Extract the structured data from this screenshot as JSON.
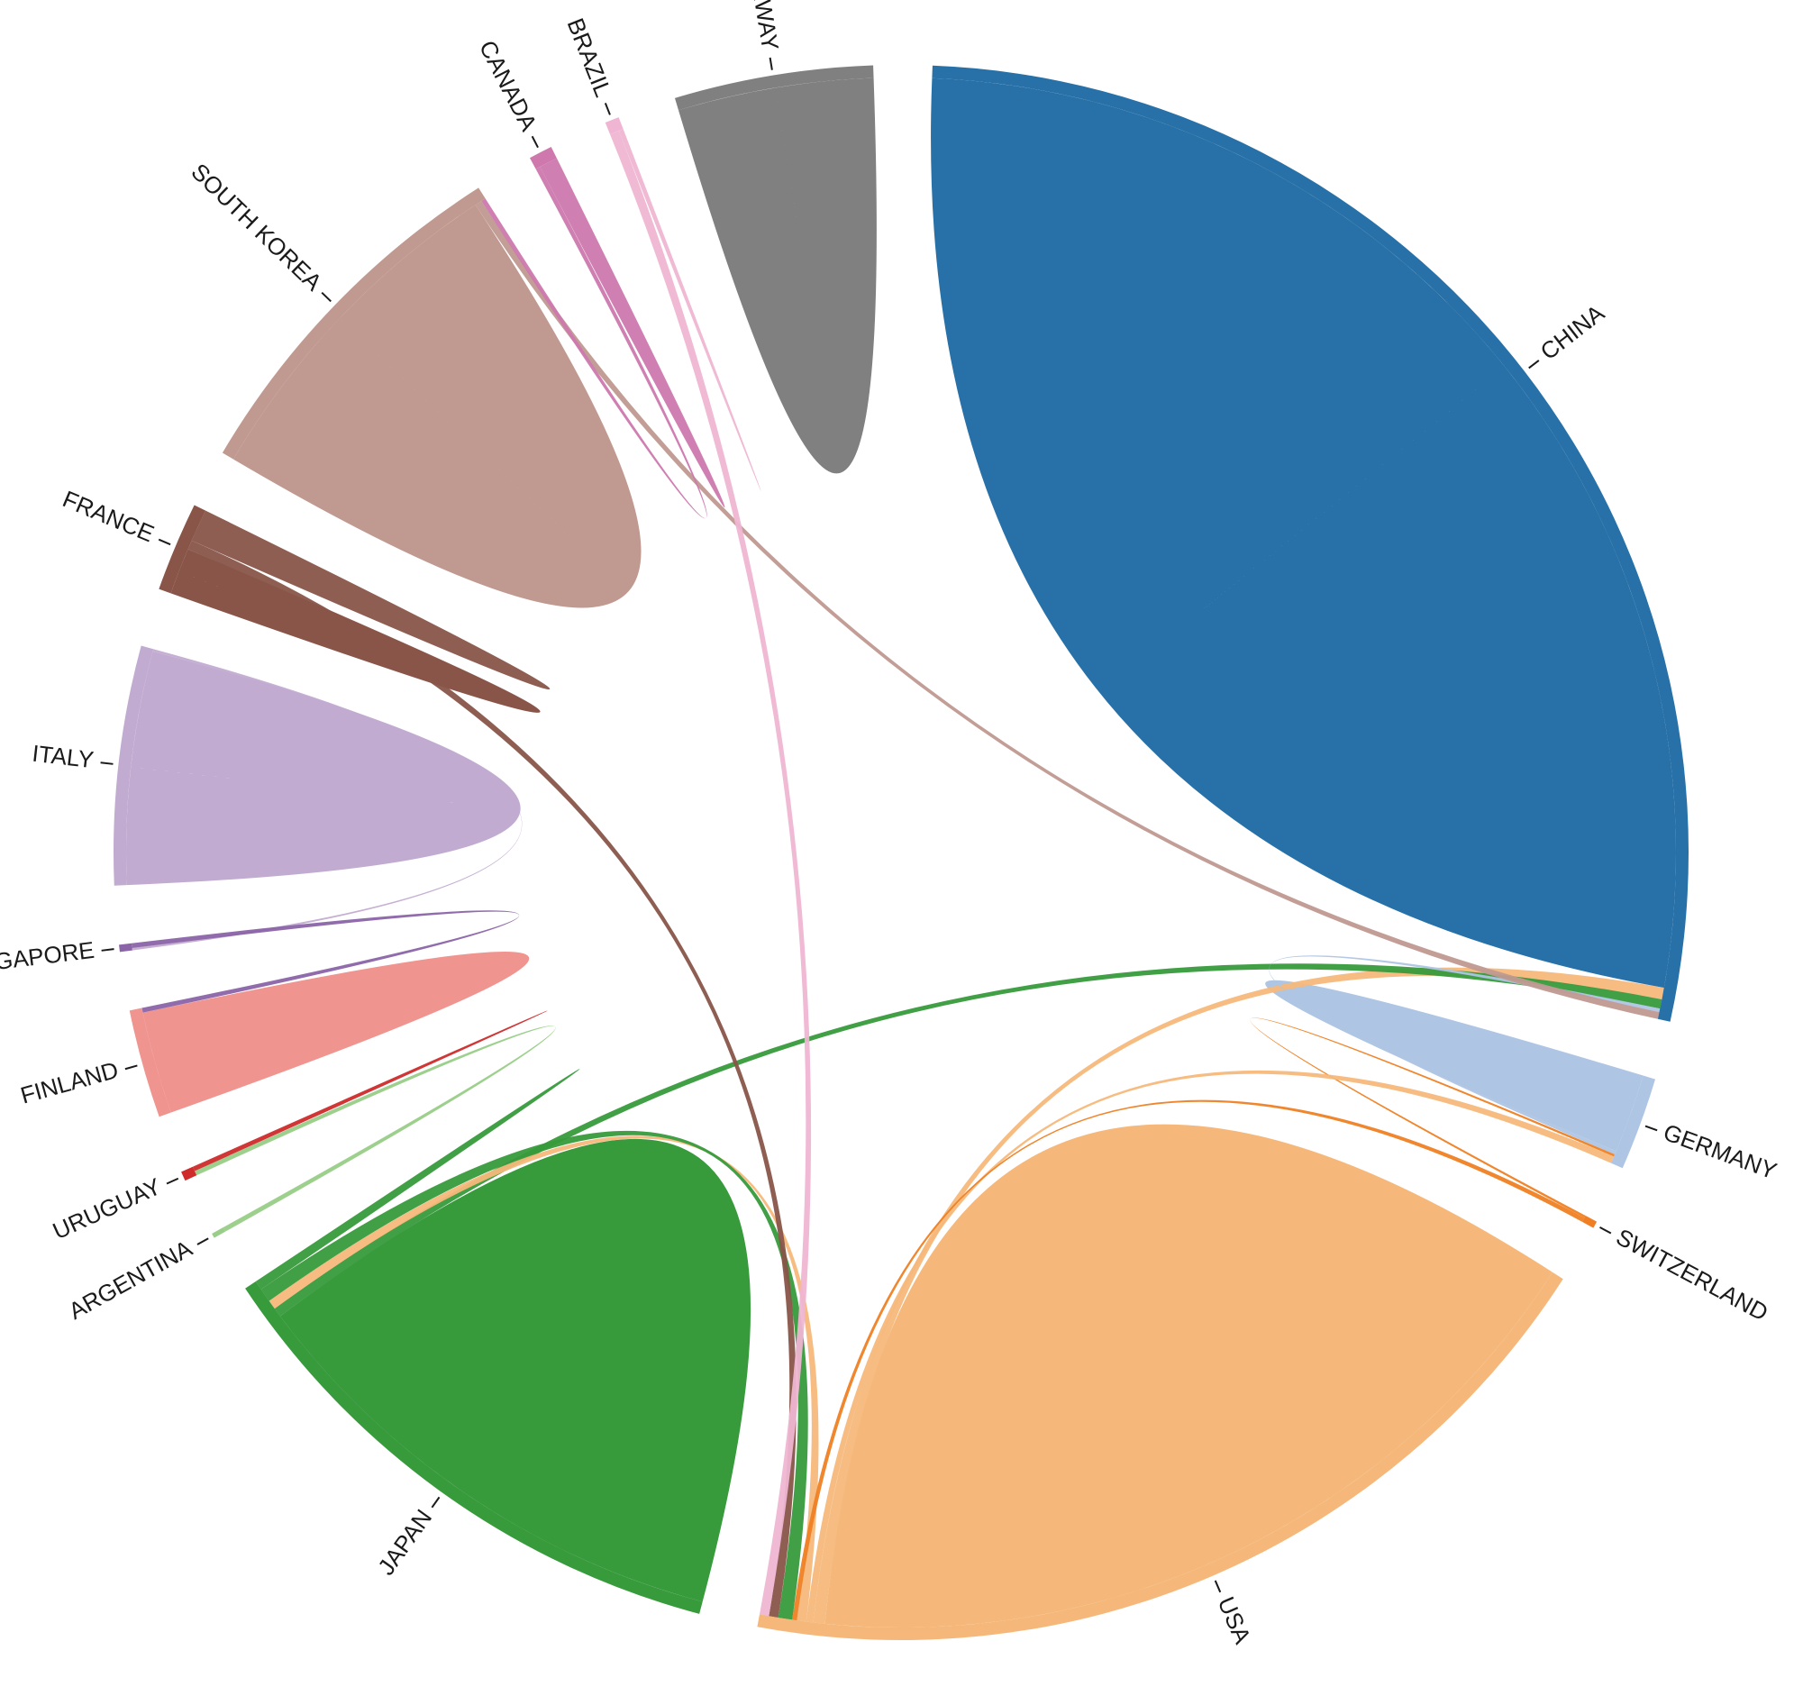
{
  "chart_data": {
    "type": "chord",
    "title": "",
    "nodes": [
      {
        "name": "CHINA",
        "color": "#2771a8",
        "self_value": 280
      },
      {
        "name": "GERMANY",
        "color": "#aec5e3",
        "self_value": 17
      },
      {
        "name": "SWITZERLAND",
        "color": "#ef7f22",
        "self_value": 0
      },
      {
        "name": "USA",
        "color": "#f5b87a",
        "self_value": 180
      },
      {
        "name": "JAPAN",
        "color": "#379a3b",
        "self_value": 110
      },
      {
        "name": "ARGENTINA",
        "color": "#98ce87",
        "self_value": 0
      },
      {
        "name": "URUGUAY",
        "color": "#cf2b2b",
        "self_value": 0
      },
      {
        "name": "FINLAND",
        "color": "#f09490",
        "self_value": 22
      },
      {
        "name": "SINGAPORE",
        "color": "#8b64a8",
        "self_value": 0
      },
      {
        "name": "ITALY",
        "color": "#c2abd1",
        "self_value": 50
      },
      {
        "name": "FRANCE",
        "color": "#895549",
        "self_value": 10
      },
      {
        "name": "SOUTH KOREA",
        "color": "#c09991",
        "self_value": 75
      },
      {
        "name": "CANADA",
        "color": "#ce78ae",
        "self_value": 0
      },
      {
        "name": "BRAZIL",
        "color": "#efb5d2",
        "self_value": 0
      },
      {
        "name": "NORWAY",
        "color": "#808080",
        "self_value": 42
      }
    ],
    "links": [
      {
        "source": "USA",
        "target": "CHINA",
        "value": 5
      },
      {
        "source": "JAPAN",
        "target": "CHINA",
        "value": 4
      },
      {
        "source": "GERMANY",
        "target": "CHINA",
        "value": 1.5
      },
      {
        "source": "SOUTH KOREA",
        "target": "CHINA",
        "value": 3
      },
      {
        "source": "SWITZERLAND",
        "target": "GERMANY",
        "value": 1
      },
      {
        "source": "USA",
        "target": "GERMANY",
        "value": 3
      },
      {
        "source": "USA",
        "target": "JAPAN",
        "value": 4
      },
      {
        "source": "SWITZERLAND",
        "target": "USA",
        "value": 2
      },
      {
        "source": "JAPAN",
        "target": "USA",
        "value": 6
      },
      {
        "source": "FRANCE",
        "target": "USA",
        "value": 4
      },
      {
        "source": "BRAZIL",
        "target": "USA",
        "value": 4
      },
      {
        "source": "ARGENTINA",
        "target": "URUGUAY",
        "value": 2
      },
      {
        "source": "URUGUAY",
        "target": "URUGUAY",
        "value": 1
      },
      {
        "source": "ITALY",
        "target": "SINGAPORE",
        "value": 1
      },
      {
        "source": "SINGAPORE",
        "target": "FINLAND",
        "value": 2
      },
      {
        "source": "FRANCE",
        "target": "FRANCE",
        "value": 7
      },
      {
        "source": "CANADA",
        "target": "SOUTH KOREA",
        "value": 2
      },
      {
        "source": "CANADA",
        "target": "CANADA",
        "value": 4
      },
      {
        "source": "BRAZIL",
        "target": "BRAZIL",
        "value": 1
      },
      {
        "source": "JAPAN",
        "target": "JAPAN",
        "value": 2
      }
    ]
  }
}
